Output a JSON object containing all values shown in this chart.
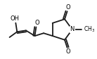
{
  "bg_color": "#ffffff",
  "bond_color": "#1a1a1a",
  "lw": 1.3,
  "figsize": [
    1.38,
    0.84
  ],
  "dpi": 100,
  "fs": 6.0,
  "xlim": [
    0,
    138
  ],
  "ylim": [
    0,
    84
  ]
}
